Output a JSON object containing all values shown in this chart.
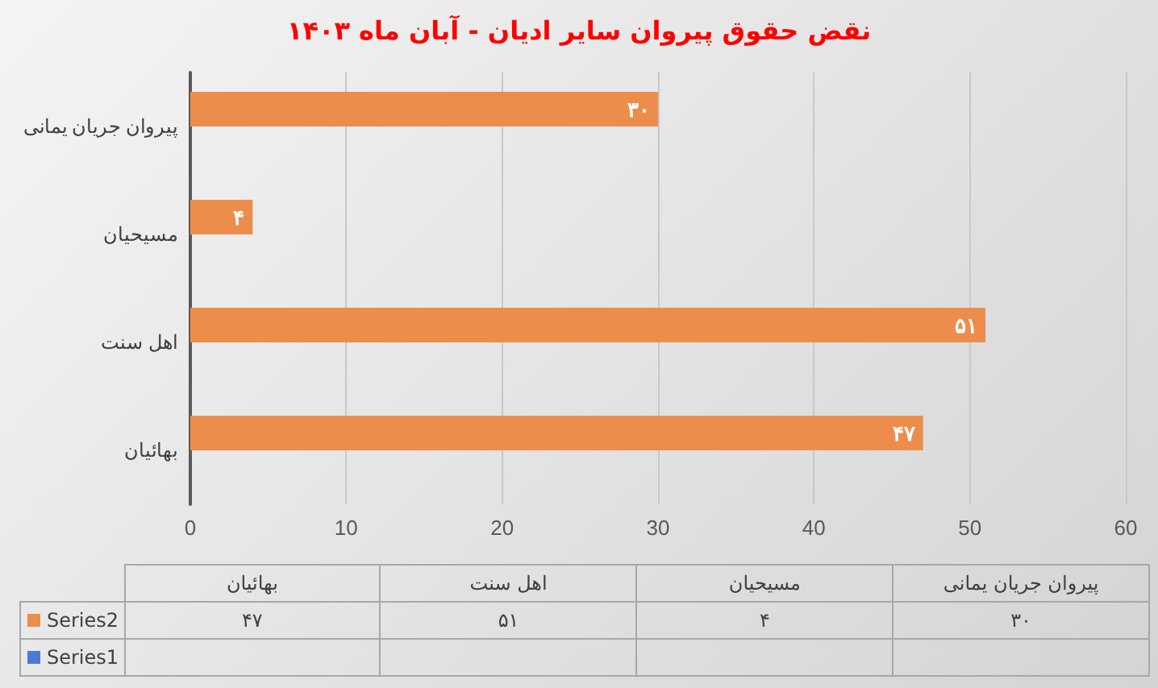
{
  "chart_data": {
    "type": "bar",
    "orientation": "horizontal",
    "title": "نقض حقوق پیروان سایر ادیان - آبان ماه ۱۴۰۳",
    "categories": [
      "پیروان جریان یمانی",
      "مسیحیان",
      "اهل سنت",
      "بهائیان"
    ],
    "series": [
      {
        "name": "Series2",
        "color": "#ed8d4b",
        "values": [
          30,
          4,
          51,
          47
        ],
        "value_labels": [
          "۳۰",
          "۴",
          "۵۱",
          "۴۷"
        ]
      },
      {
        "name": "Series1",
        "color": "#4a7bd0",
        "values": [
          null,
          null,
          null,
          null
        ]
      }
    ],
    "xlim": [
      0,
      60
    ],
    "xticks": [
      0,
      10,
      20,
      30,
      40,
      50,
      60
    ],
    "grid": "x",
    "legend": "bottom"
  }
}
